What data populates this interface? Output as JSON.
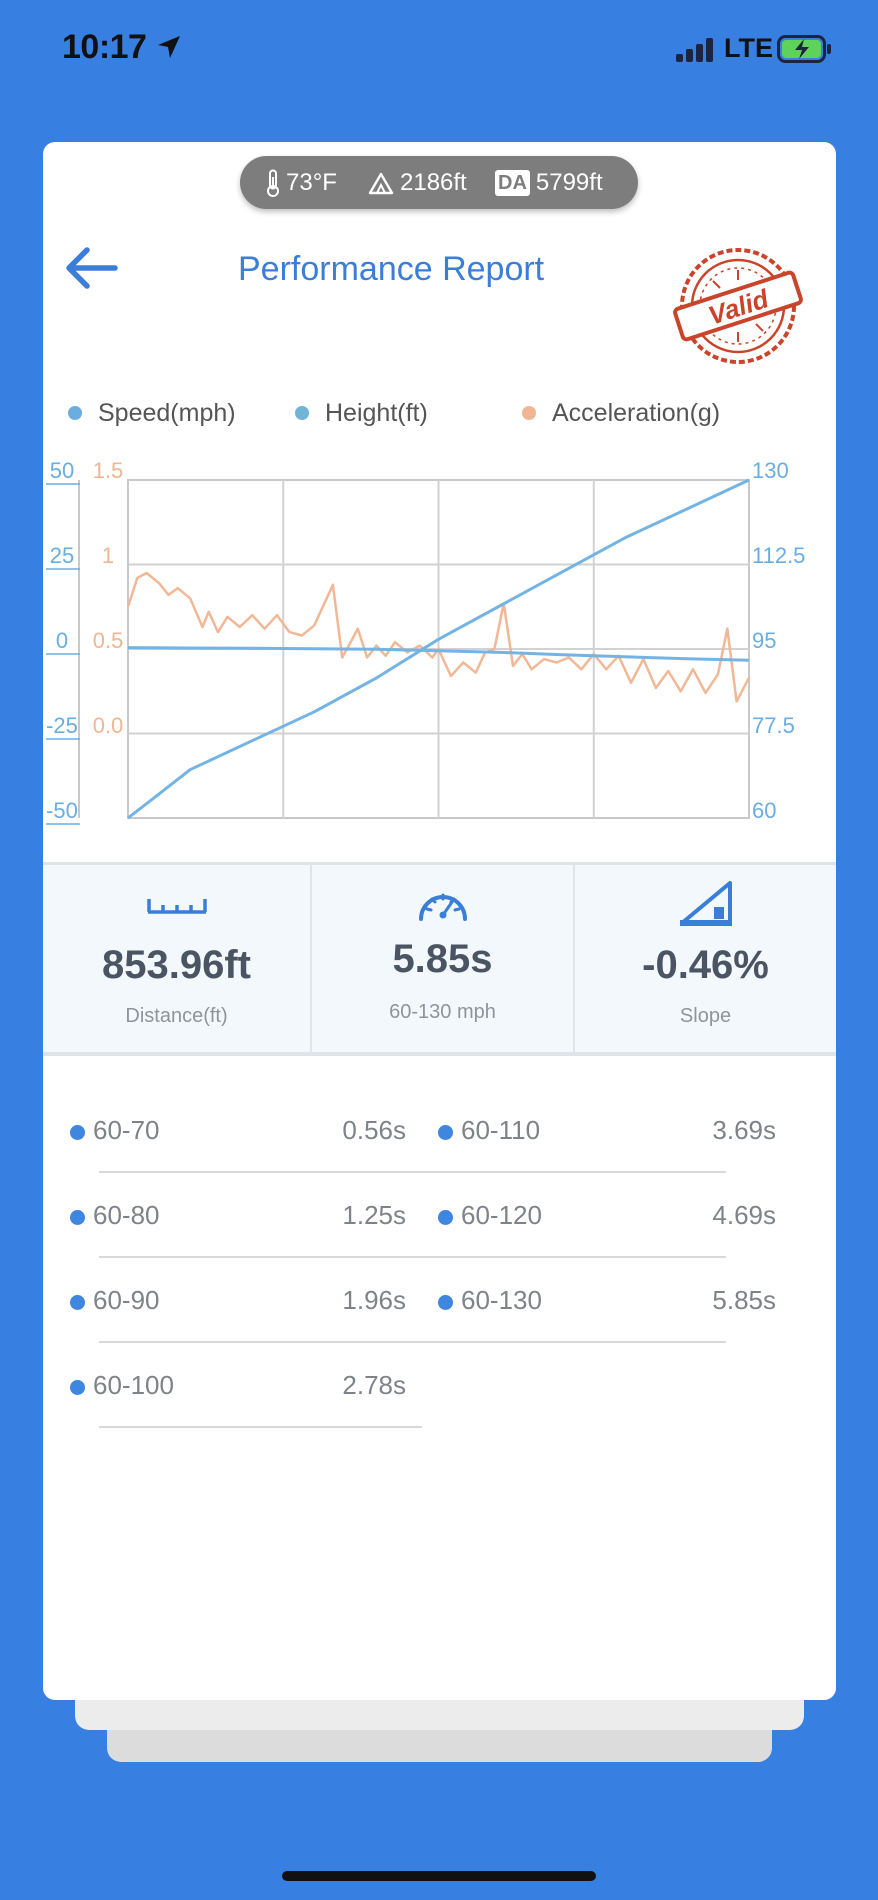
{
  "status_bar": {
    "time": "10:17",
    "network": "LTE"
  },
  "conditions": {
    "temperature": "73°F",
    "elevation": "2186ft",
    "da_badge": "DA",
    "density_altitude": "5799ft"
  },
  "header": {
    "title": "Performance Report",
    "stamp_text": "Valid"
  },
  "legend": [
    {
      "label": "Speed(mph)",
      "color": "#6aaee0"
    },
    {
      "label": "Height(ft)",
      "color": "#72b4d8"
    },
    {
      "label": "Acceleration(g)",
      "color": "#f0b693"
    }
  ],
  "chart_data": {
    "type": "line",
    "grid": true,
    "axes": {
      "height_ticks": [
        "50",
        "25",
        "0",
        "-25",
        "-50"
      ],
      "accel_ticks": [
        "1.5",
        "1",
        "0.5",
        "0.0"
      ],
      "speed_ticks": [
        "130",
        "112.5",
        "95",
        "77.5",
        "60"
      ]
    },
    "speed_range": [
      60,
      130
    ],
    "height_range": [
      -50,
      50
    ],
    "accel_range": [
      -0.5,
      1.5
    ],
    "series": [
      {
        "name": "Speed(mph)",
        "color": "#74b4e4",
        "x": [
          0,
          0.05,
          0.1,
          0.2,
          0.3,
          0.4,
          0.5,
          0.6,
          0.7,
          0.8,
          0.9,
          1.0
        ],
        "y": [
          60,
          65,
          70,
          76,
          82,
          89,
          97,
          104,
          111,
          118,
          124,
          130
        ]
      },
      {
        "name": "Height(ft)",
        "color": "#74b4e4",
        "x": [
          0,
          0.1,
          0.2,
          0.3,
          0.4,
          0.5,
          0.6,
          0.7,
          0.8,
          0.9,
          1.0
        ],
        "y": [
          0.4,
          0.3,
          0.2,
          0.1,
          -0.1,
          -0.5,
          -1.0,
          -1.7,
          -2.3,
          -2.9,
          -3.3
        ]
      },
      {
        "name": "Acceleration(g)",
        "color": "#f2b896",
        "x": [
          0,
          0.015,
          0.03,
          0.05,
          0.065,
          0.08,
          0.1,
          0.12,
          0.13,
          0.145,
          0.16,
          0.18,
          0.2,
          0.22,
          0.24,
          0.26,
          0.28,
          0.3,
          0.33,
          0.345,
          0.36,
          0.37,
          0.385,
          0.4,
          0.415,
          0.43,
          0.45,
          0.47,
          0.49,
          0.5,
          0.52,
          0.54,
          0.56,
          0.575,
          0.59,
          0.605,
          0.62,
          0.635,
          0.65,
          0.67,
          0.69,
          0.71,
          0.73,
          0.75,
          0.77,
          0.79,
          0.81,
          0.83,
          0.85,
          0.87,
          0.89,
          0.91,
          0.93,
          0.95,
          0.965,
          0.98,
          1.0
        ],
        "y": [
          0.75,
          0.92,
          0.95,
          0.89,
          0.82,
          0.86,
          0.8,
          0.63,
          0.72,
          0.6,
          0.69,
          0.63,
          0.7,
          0.62,
          0.7,
          0.6,
          0.58,
          0.64,
          0.88,
          0.45,
          0.55,
          0.62,
          0.45,
          0.52,
          0.46,
          0.54,
          0.48,
          0.52,
          0.45,
          0.5,
          0.34,
          0.42,
          0.36,
          0.48,
          0.5,
          0.77,
          0.4,
          0.47,
          0.38,
          0.44,
          0.42,
          0.45,
          0.38,
          0.47,
          0.38,
          0.46,
          0.3,
          0.44,
          0.27,
          0.37,
          0.25,
          0.38,
          0.24,
          0.35,
          0.62,
          0.19,
          0.33
        ]
      }
    ]
  },
  "stats": [
    {
      "value": "853.96ft",
      "label": "Distance(ft)",
      "icon": "ruler-icon"
    },
    {
      "value": "5.85s",
      "label": "60-130 mph",
      "icon": "speedometer-icon"
    },
    {
      "value": "-0.46%",
      "label": "Slope",
      "icon": "slope-icon"
    }
  ],
  "splits": {
    "left": [
      {
        "label": "60-70",
        "time": "0.56s"
      },
      {
        "label": "60-80",
        "time": "1.25s"
      },
      {
        "label": "60-90",
        "time": "1.96s"
      },
      {
        "label": "60-100",
        "time": "2.78s"
      }
    ],
    "right": [
      {
        "label": "60-110",
        "time": "3.69s"
      },
      {
        "label": "60-120",
        "time": "4.69s"
      },
      {
        "label": "60-130",
        "time": "5.85s"
      }
    ]
  },
  "colors": {
    "background": "#377fe0",
    "accent": "#3a7ed8",
    "stamp": "#c9442a"
  }
}
